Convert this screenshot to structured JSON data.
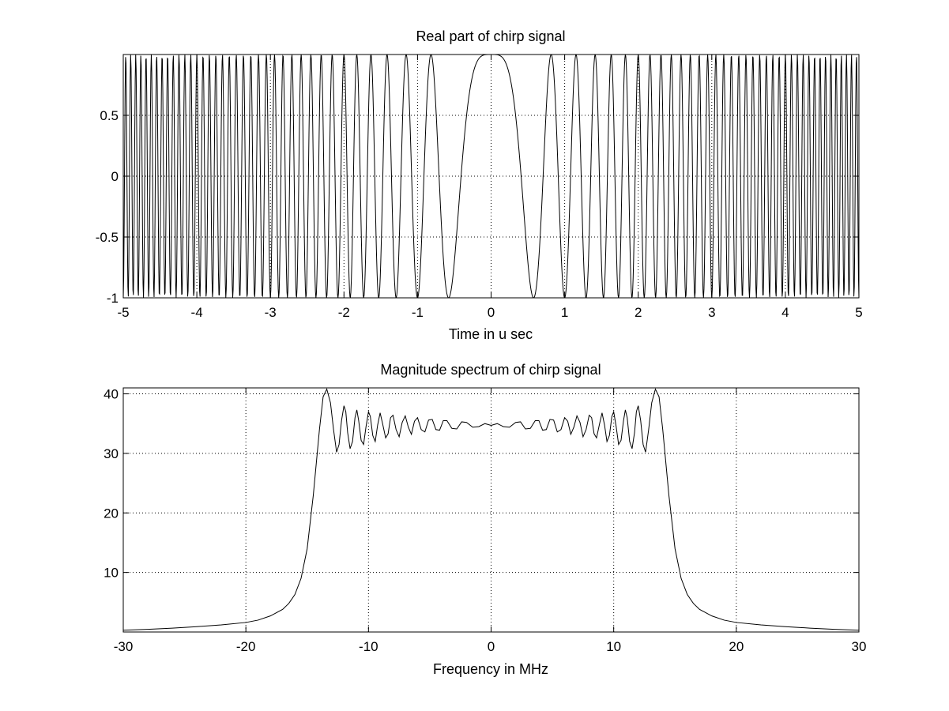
{
  "figure": {
    "background": "#ffffff",
    "line_color": "#000000",
    "grid_color": "#000000"
  },
  "chart_data": [
    {
      "type": "line",
      "title": "Real part of chirp signal",
      "xlabel": "Time in u sec",
      "ylabel": "",
      "xlim": [
        -5,
        5
      ],
      "ylim": [
        -1,
        1
      ],
      "grid": true,
      "x_ticks": [
        -5,
        -4,
        -3,
        -2,
        -1,
        0,
        1,
        2,
        3,
        4,
        5
      ],
      "x_tick_labels": [
        "-5",
        "-4",
        "-3",
        "-2",
        "-1",
        "0",
        "1",
        "2",
        "3",
        "4",
        "5"
      ],
      "y_ticks": [
        -1,
        -0.5,
        0,
        0.5
      ],
      "y_tick_labels": [
        "-1",
        "-0.5",
        "0",
        "0.5"
      ],
      "series": [
        {
          "function": "cos(pi * k * t^2)",
          "chirp_rate_mhz_per_us": 3,
          "t_range": [
            -5,
            5
          ],
          "samples": 1601,
          "color": "#000000"
        }
      ]
    },
    {
      "type": "line",
      "title": "Magnitude spectrum of chirp signal",
      "xlabel": "Frequency in MHz",
      "ylabel": "",
      "xlim": [
        -30,
        30
      ],
      "ylim": [
        0,
        41
      ],
      "grid": true,
      "x_ticks": [
        -30,
        -20,
        -10,
        0,
        10,
        20,
        30
      ],
      "x_tick_labels": [
        "-30",
        "-20",
        "-10",
        "0",
        "10",
        "20",
        "30"
      ],
      "y_ticks": [
        10,
        20,
        30,
        40
      ],
      "y_tick_labels": [
        "10",
        "20",
        "30",
        "40"
      ],
      "series": [
        {
          "points": [
            [
              -30,
              0.3
            ],
            [
              -28,
              0.45
            ],
            [
              -26,
              0.65
            ],
            [
              -24,
              0.9
            ],
            [
              -22,
              1.2
            ],
            [
              -20,
              1.6
            ],
            [
              -19,
              2.0
            ],
            [
              -18,
              2.7
            ],
            [
              -17,
              3.8
            ],
            [
              -16.5,
              4.8
            ],
            [
              -16,
              6.3
            ],
            [
              -15.5,
              9.0
            ],
            [
              -15,
              14.0
            ],
            [
              -14.5,
              23.0
            ],
            [
              -14,
              34.0
            ],
            [
              -13.7,
              39.5
            ],
            [
              -13.4,
              40.8
            ],
            [
              -13.1,
              38.5
            ],
            [
              -12.85,
              34.0
            ],
            [
              -12.6,
              30.2
            ],
            [
              -12.4,
              31.5
            ],
            [
              -12.2,
              35.5
            ],
            [
              -12.0,
              38.0
            ],
            [
              -11.85,
              37.0
            ],
            [
              -11.7,
              33.5
            ],
            [
              -11.5,
              30.8
            ],
            [
              -11.3,
              32.0
            ],
            [
              -11.1,
              36.0
            ],
            [
              -10.95,
              37.3
            ],
            [
              -10.8,
              35.5
            ],
            [
              -10.6,
              32.2
            ],
            [
              -10.4,
              31.5
            ],
            [
              -10.2,
              34.5
            ],
            [
              -10.0,
              37.0
            ],
            [
              -9.85,
              36.2
            ],
            [
              -9.65,
              33.0
            ],
            [
              -9.45,
              32.0
            ],
            [
              -9.25,
              34.8
            ],
            [
              -9.05,
              36.8
            ],
            [
              -8.85,
              35.0
            ],
            [
              -8.6,
              32.6
            ],
            [
              -8.4,
              33.3
            ],
            [
              -8.2,
              36.0
            ],
            [
              -8.0,
              36.4
            ],
            [
              -7.75,
              34.0
            ],
            [
              -7.5,
              32.8
            ],
            [
              -7.25,
              35.2
            ],
            [
              -7.0,
              36.3
            ],
            [
              -6.75,
              34.4
            ],
            [
              -6.5,
              33.2
            ],
            [
              -6.25,
              35.4
            ],
            [
              -6.0,
              36.0
            ],
            [
              -5.7,
              34.0
            ],
            [
              -5.4,
              33.6
            ],
            [
              -5.1,
              35.6
            ],
            [
              -4.8,
              35.7
            ],
            [
              -4.5,
              34.0
            ],
            [
              -4.2,
              33.9
            ],
            [
              -3.9,
              35.5
            ],
            [
              -3.6,
              35.5
            ],
            [
              -3.2,
              34.2
            ],
            [
              -2.8,
              34.1
            ],
            [
              -2.4,
              35.3
            ],
            [
              -2.0,
              35.2
            ],
            [
              -1.5,
              34.4
            ],
            [
              -1.0,
              34.5
            ],
            [
              -0.5,
              35.0
            ],
            [
              0,
              34.7
            ],
            [
              0.5,
              35.0
            ],
            [
              1.0,
              34.5
            ],
            [
              1.5,
              34.4
            ],
            [
              2.0,
              35.2
            ],
            [
              2.4,
              35.3
            ],
            [
              2.8,
              34.1
            ],
            [
              3.2,
              34.2
            ],
            [
              3.6,
              35.5
            ],
            [
              3.9,
              35.5
            ],
            [
              4.2,
              33.9
            ],
            [
              4.5,
              34.0
            ],
            [
              4.8,
              35.7
            ],
            [
              5.1,
              35.6
            ],
            [
              5.4,
              33.6
            ],
            [
              5.7,
              34.0
            ],
            [
              6.0,
              36.0
            ],
            [
              6.25,
              35.4
            ],
            [
              6.5,
              33.2
            ],
            [
              6.75,
              34.4
            ],
            [
              7.0,
              36.3
            ],
            [
              7.25,
              35.2
            ],
            [
              7.5,
              32.8
            ],
            [
              7.75,
              34.0
            ],
            [
              8.0,
              36.4
            ],
            [
              8.2,
              36.0
            ],
            [
              8.4,
              33.3
            ],
            [
              8.6,
              32.6
            ],
            [
              8.85,
              35.0
            ],
            [
              9.05,
              36.8
            ],
            [
              9.25,
              34.8
            ],
            [
              9.45,
              32.0
            ],
            [
              9.65,
              33.0
            ],
            [
              9.85,
              36.2
            ],
            [
              10.0,
              37.0
            ],
            [
              10.2,
              34.5
            ],
            [
              10.4,
              31.5
            ],
            [
              10.6,
              32.2
            ],
            [
              10.8,
              35.5
            ],
            [
              10.95,
              37.3
            ],
            [
              11.1,
              36.0
            ],
            [
              11.3,
              32.0
            ],
            [
              11.5,
              30.8
            ],
            [
              11.7,
              33.5
            ],
            [
              11.85,
              37.0
            ],
            [
              12.0,
              38.0
            ],
            [
              12.2,
              35.5
            ],
            [
              12.4,
              31.5
            ],
            [
              12.6,
              30.2
            ],
            [
              12.85,
              34.0
            ],
            [
              13.1,
              38.5
            ],
            [
              13.4,
              40.8
            ],
            [
              13.7,
              39.5
            ],
            [
              14,
              34.0
            ],
            [
              14.5,
              23.0
            ],
            [
              15,
              14.0
            ],
            [
              15.5,
              9.0
            ],
            [
              16,
              6.3
            ],
            [
              16.5,
              4.8
            ],
            [
              17,
              3.8
            ],
            [
              18,
              2.7
            ],
            [
              19,
              2.0
            ],
            [
              20,
              1.6
            ],
            [
              22,
              1.2
            ],
            [
              24,
              0.9
            ],
            [
              26,
              0.65
            ],
            [
              28,
              0.45
            ],
            [
              30,
              0.3
            ]
          ],
          "color": "#000000"
        }
      ]
    }
  ]
}
